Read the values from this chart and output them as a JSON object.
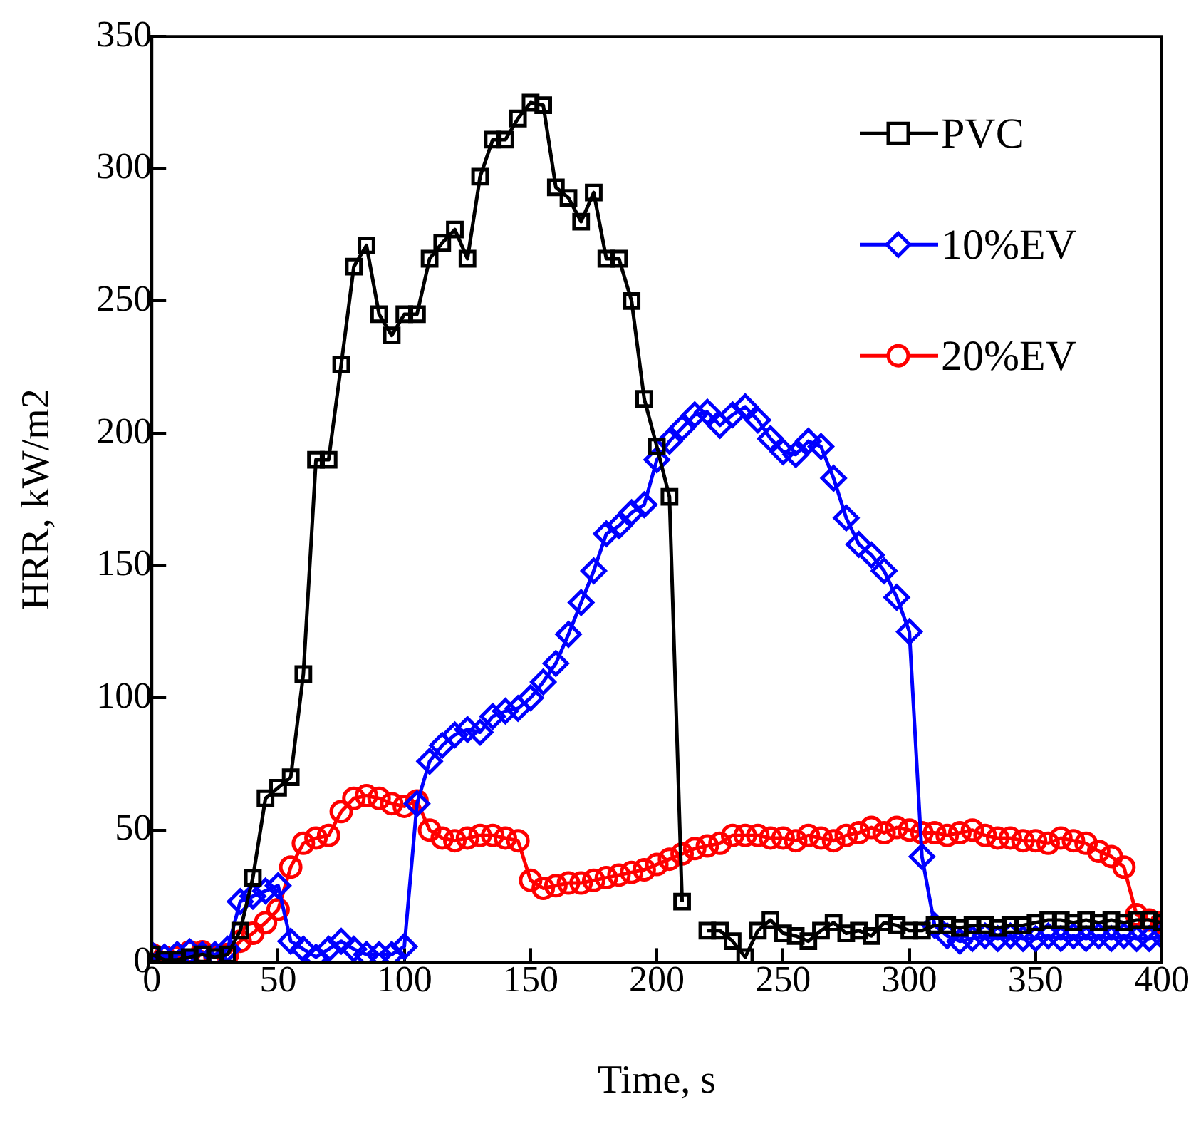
{
  "chart_data": {
    "type": "line",
    "xlabel": "Time, s",
    "ylabel": "HRR, kW/m2",
    "x": [
      0,
      5,
      10,
      15,
      20,
      25,
      30,
      35,
      40,
      45,
      50,
      55,
      60,
      65,
      70,
      75,
      80,
      85,
      90,
      95,
      100,
      105,
      110,
      115,
      120,
      125,
      130,
      135,
      140,
      145,
      150,
      155,
      160,
      165,
      170,
      175,
      180,
      185,
      190,
      195,
      200,
      205,
      210,
      215,
      220,
      225,
      230,
      235,
      240,
      245,
      250,
      255,
      260,
      265,
      270,
      275,
      280,
      285,
      290,
      295,
      300,
      305,
      310,
      315,
      320,
      325,
      330,
      335,
      340,
      345,
      350,
      355,
      360,
      365,
      370,
      375,
      380,
      385,
      390,
      395,
      400
    ],
    "series": [
      {
        "name": "PVC",
        "color": "#000000",
        "marker": "square",
        "values": [
          3,
          1,
          1,
          2,
          3,
          2,
          3,
          12,
          32,
          62,
          66,
          70,
          109,
          190,
          190,
          226,
          263,
          271,
          245,
          237,
          245,
          245,
          266,
          272,
          277,
          266,
          297,
          311,
          311,
          319,
          325,
          324,
          293,
          289,
          280,
          291,
          266,
          266,
          250,
          213,
          195,
          176,
          23,
          null,
          12,
          12,
          8,
          2,
          12,
          16,
          11,
          10,
          8,
          12,
          15,
          11,
          12,
          10,
          15,
          14,
          12,
          12,
          14,
          14,
          13,
          14,
          14,
          13,
          14,
          14,
          15,
          16,
          16,
          15,
          16,
          15,
          16,
          15,
          16,
          16,
          15
        ]
      },
      {
        "name": "10%EV",
        "color": "#0000ff",
        "marker": "diamond",
        "values": [
          3,
          2,
          3,
          4,
          3,
          3,
          5,
          23,
          25,
          27,
          29,
          8,
          5,
          2,
          5,
          8,
          5,
          3,
          3,
          3,
          6,
          60,
          76,
          82,
          86,
          88,
          87,
          93,
          95,
          96,
          100,
          106,
          113,
          124,
          136,
          148,
          162,
          165,
          170,
          173,
          190,
          197,
          202,
          207,
          208,
          203,
          207,
          210,
          205,
          198,
          193,
          192,
          197,
          195,
          183,
          168,
          158,
          154,
          148,
          138,
          125,
          40,
          14,
          10,
          8,
          9,
          10,
          9,
          10,
          9,
          9,
          10,
          9,
          10,
          9,
          10,
          9,
          10,
          9,
          9,
          10
        ]
      },
      {
        "name": "20%EV",
        "color": "#ff0000",
        "marker": "circle",
        "values": [
          3,
          2,
          2,
          4,
          4,
          2,
          3,
          8,
          11,
          15,
          20,
          36,
          45,
          47,
          48,
          57,
          62,
          63,
          62,
          60,
          59,
          61,
          50,
          47,
          46,
          47,
          48,
          48,
          47,
          46,
          31,
          28,
          29,
          30,
          30,
          31,
          32,
          33,
          34,
          35,
          37,
          39,
          41,
          43,
          44,
          45,
          48,
          48,
          48,
          47,
          47,
          46,
          48,
          47,
          46,
          48,
          49,
          51,
          49,
          51,
          50,
          49,
          49,
          48,
          49,
          50,
          48,
          47,
          47,
          46,
          46,
          45,
          47,
          46,
          45,
          42,
          40,
          36,
          18,
          16,
          15
        ]
      }
    ],
    "xlim": [
      0,
      400
    ],
    "xticks": [
      0,
      50,
      100,
      150,
      200,
      250,
      300,
      350,
      400
    ],
    "ylim": [
      0,
      350
    ],
    "yticks": [
      0,
      50,
      100,
      150,
      200,
      250,
      300,
      350
    ],
    "grid": false,
    "legend": "top right",
    "line_style": "solid"
  }
}
